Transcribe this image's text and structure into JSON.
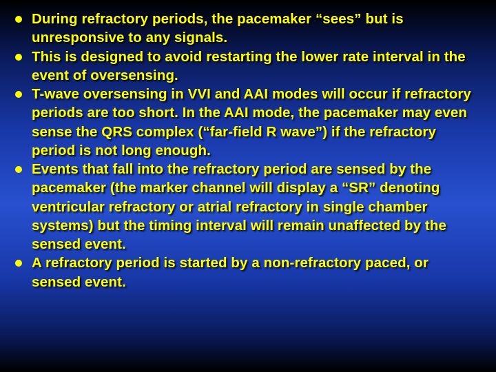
{
  "background": {
    "gradient_stops": [
      "#000000",
      "#0a1a5a",
      "#1838a8",
      "#2850d0",
      "#1838a8",
      "#0a1a5a",
      "#000000"
    ],
    "direction": "vertical"
  },
  "bullet_color": "#ffff00",
  "text_color": "#ffff00",
  "font_family": "Arial",
  "font_weight": 700,
  "font_size_pt": 16,
  "text_shadow": "2px 2px 2px rgba(0,0,0,0.85)",
  "bullets": [
    "During refractory periods, the pacemaker “sees” but is unresponsive to any signals.",
    "This is designed to avoid restarting the lower rate interval in the event of oversensing.",
    "T-wave oversensing in VVI and AAI modes will occur if refractory periods are too short.  In the AAI mode, the pacemaker may even sense the QRS complex (“far-field R wave”) if the refractory period is not long enough.",
    "Events that fall into the refractory period are sensed by the pacemaker (the marker channel will display a “SR” denoting ventricular refractory or atrial refractory in single chamber systems) but the timing interval will remain unaffected by the sensed event.",
    "A refractory period is started by a non-refractory paced, or sensed event."
  ]
}
